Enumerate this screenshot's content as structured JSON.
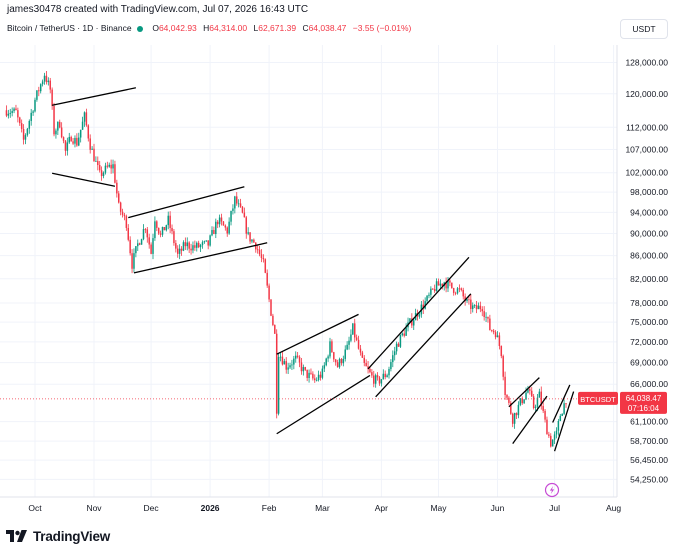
{
  "header": {
    "attribution": "james30478 created with TradingView.com, Jul 07, 2026 16:43 UTC"
  },
  "legend": {
    "symbol": "Bitcoin / TetherUS · 1D · Binance",
    "o_label": "O",
    "o_value": "64,042.93",
    "h_label": "H",
    "h_value": "64,314.00",
    "l_label": "L",
    "l_value": "62,671.39",
    "c_label": "C",
    "c_value": "64,038.47",
    "change": "−3.55 (−0.01%)"
  },
  "currency_button": "USDT",
  "brand": {
    "name": "TradingView"
  },
  "colors": {
    "up": "#089981",
    "down": "#f23645",
    "lastPrice": "#f23645",
    "trendline": "#000000"
  },
  "last_price_tag": {
    "symbol": "BTCUSDT",
    "price": "64,038.47",
    "countdown": "07:16:04"
  },
  "chart_data": {
    "type": "candlestick",
    "symbol": "BTCUSDT",
    "interval": "1D",
    "exchange": "Binance",
    "x_labels": [
      "Oct",
      "Nov",
      "Dec",
      "2026",
      "Feb",
      "Mar",
      "Apr",
      "May",
      "Jun",
      "Jul",
      "Aug"
    ],
    "y_ticks": [
      "128,000.00",
      "120,000.00",
      "112,000.00",
      "107,000.00",
      "102,000.00",
      "98,000.00",
      "94,000.00",
      "90,000.00",
      "86,000.00",
      "82,000.00",
      "78,000.00",
      "75,000.00",
      "72,000.00",
      "69,000.00",
      "66,000.00",
      "61,100.00",
      "58,700.00",
      "56,450.00",
      "54,250.00"
    ],
    "y_scale": "log",
    "y_range": [
      52000,
      136000
    ],
    "last_price": 64038.47,
    "waypoints": [
      {
        "date": "2025-09-16",
        "price": 116000
      },
      {
        "date": "2025-09-21",
        "price": 115500
      },
      {
        "date": "2025-09-25",
        "price": 109000
      },
      {
        "date": "2025-10-01",
        "price": 118500
      },
      {
        "date": "2025-10-06",
        "price": 125000
      },
      {
        "date": "2025-10-09",
        "price": 121000
      },
      {
        "date": "2025-10-11",
        "price": 111000
      },
      {
        "date": "2025-10-14",
        "price": 113000
      },
      {
        "date": "2025-10-17",
        "price": 106500
      },
      {
        "date": "2025-10-20",
        "price": 110000
      },
      {
        "date": "2025-10-23",
        "price": 108500
      },
      {
        "date": "2025-10-27",
        "price": 114500
      },
      {
        "date": "2025-10-30",
        "price": 108000
      },
      {
        "date": "2025-11-04",
        "price": 101500
      },
      {
        "date": "2025-11-08",
        "price": 103000
      },
      {
        "date": "2025-11-11",
        "price": 103500
      },
      {
        "date": "2025-11-14",
        "price": 95000
      },
      {
        "date": "2025-11-18",
        "price": 92000
      },
      {
        "date": "2025-11-21",
        "price": 84500
      },
      {
        "date": "2025-11-24",
        "price": 88000
      },
      {
        "date": "2025-11-28",
        "price": 91500
      },
      {
        "date": "2025-12-01",
        "price": 86500
      },
      {
        "date": "2025-12-03",
        "price": 93000
      },
      {
        "date": "2025-12-06",
        "price": 89500
      },
      {
        "date": "2025-12-10",
        "price": 92500
      },
      {
        "date": "2025-12-15",
        "price": 86000
      },
      {
        "date": "2025-12-19",
        "price": 88000
      },
      {
        "date": "2025-12-24",
        "price": 87500
      },
      {
        "date": "2025-12-31",
        "price": 88000
      },
      {
        "date": "2026-01-05",
        "price": 92500
      },
      {
        "date": "2026-01-10",
        "price": 90500
      },
      {
        "date": "2026-01-14",
        "price": 96500
      },
      {
        "date": "2026-01-18",
        "price": 93500
      },
      {
        "date": "2026-01-21",
        "price": 89500
      },
      {
        "date": "2026-01-25",
        "price": 88000
      },
      {
        "date": "2026-01-29",
        "price": 84500
      },
      {
        "date": "2026-02-01",
        "price": 78500
      },
      {
        "date": "2026-02-04",
        "price": 73000
      },
      {
        "date": "2026-02-05",
        "price": 62800
      },
      {
        "date": "2026-02-06",
        "price": 70500
      },
      {
        "date": "2026-02-10",
        "price": 68500
      },
      {
        "date": "2026-02-15",
        "price": 69500
      },
      {
        "date": "2026-02-20",
        "price": 67500
      },
      {
        "date": "2026-02-25",
        "price": 66500
      },
      {
        "date": "2026-03-01",
        "price": 67500
      },
      {
        "date": "2026-03-05",
        "price": 71500
      },
      {
        "date": "2026-03-09",
        "price": 68500
      },
      {
        "date": "2026-03-14",
        "price": 71000
      },
      {
        "date": "2026-03-17",
        "price": 74000
      },
      {
        "date": "2026-03-22",
        "price": 69000
      },
      {
        "date": "2026-03-27",
        "price": 67000
      },
      {
        "date": "2026-03-30",
        "price": 66300
      },
      {
        "date": "2026-04-04",
        "price": 67500
      },
      {
        "date": "2026-04-09",
        "price": 71500
      },
      {
        "date": "2026-04-14",
        "price": 74000
      },
      {
        "date": "2026-04-20",
        "price": 76500
      },
      {
        "date": "2026-04-25",
        "price": 78500
      },
      {
        "date": "2026-04-29",
        "price": 80500
      },
      {
        "date": "2026-05-04",
        "price": 81500
      },
      {
        "date": "2026-05-08",
        "price": 80500
      },
      {
        "date": "2026-05-12",
        "price": 80000
      },
      {
        "date": "2026-05-16",
        "price": 78000
      },
      {
        "date": "2026-05-20",
        "price": 77000
      },
      {
        "date": "2026-05-24",
        "price": 77500
      },
      {
        "date": "2026-05-28",
        "price": 74000
      },
      {
        "date": "2026-05-31",
        "price": 73500
      },
      {
        "date": "2026-06-03",
        "price": 70500
      },
      {
        "date": "2026-06-05",
        "price": 65000
      },
      {
        "date": "2026-06-09",
        "price": 61500
      },
      {
        "date": "2026-06-13",
        "price": 63500
      },
      {
        "date": "2026-06-17",
        "price": 65300
      },
      {
        "date": "2026-06-20",
        "price": 63000
      },
      {
        "date": "2026-06-23",
        "price": 64500
      },
      {
        "date": "2026-06-26",
        "price": 61000
      },
      {
        "date": "2026-06-29",
        "price": 58500
      },
      {
        "date": "2026-07-02",
        "price": 59500
      },
      {
        "date": "2026-07-04",
        "price": 62000
      },
      {
        "date": "2026-07-07",
        "price": 64038
      }
    ],
    "trendlines": [
      {
        "from": {
          "date": "2025-10-10",
          "price": 117200
        },
        "to": {
          "date": "2025-11-23",
          "price": 121500
        }
      },
      {
        "from": {
          "date": "2025-10-10",
          "price": 101900
        },
        "to": {
          "date": "2025-11-12",
          "price": 99200
        }
      },
      {
        "from": {
          "date": "2025-11-19",
          "price": 93000
        },
        "to": {
          "date": "2026-01-19",
          "price": 99100
        }
      },
      {
        "from": {
          "date": "2025-11-22",
          "price": 83000
        },
        "to": {
          "date": "2026-01-31",
          "price": 88300
        }
      },
      {
        "from": {
          "date": "2026-02-05",
          "price": 70200
        },
        "to": {
          "date": "2026-03-20",
          "price": 76200
        }
      },
      {
        "from": {
          "date": "2026-02-05",
          "price": 59600
        },
        "to": {
          "date": "2026-03-26",
          "price": 67200
        }
      },
      {
        "from": {
          "date": "2026-03-25",
          "price": 68100
        },
        "to": {
          "date": "2026-05-17",
          "price": 85700
        }
      },
      {
        "from": {
          "date": "2026-03-29",
          "price": 64300
        },
        "to": {
          "date": "2026-05-18",
          "price": 79500
        }
      },
      {
        "from": {
          "date": "2026-06-07",
          "price": 63000
        },
        "to": {
          "date": "2026-06-23",
          "price": 66900
        }
      },
      {
        "from": {
          "date": "2026-06-09",
          "price": 58400
        },
        "to": {
          "date": "2026-06-27",
          "price": 64400
        }
      },
      {
        "from": {
          "date": "2026-06-30",
          "price": 61000
        },
        "to": {
          "date": "2026-07-09",
          "price": 65900
        }
      },
      {
        "from": {
          "date": "2026-07-01",
          "price": 57500
        },
        "to": {
          "date": "2026-07-11",
          "price": 65000
        }
      }
    ]
  }
}
